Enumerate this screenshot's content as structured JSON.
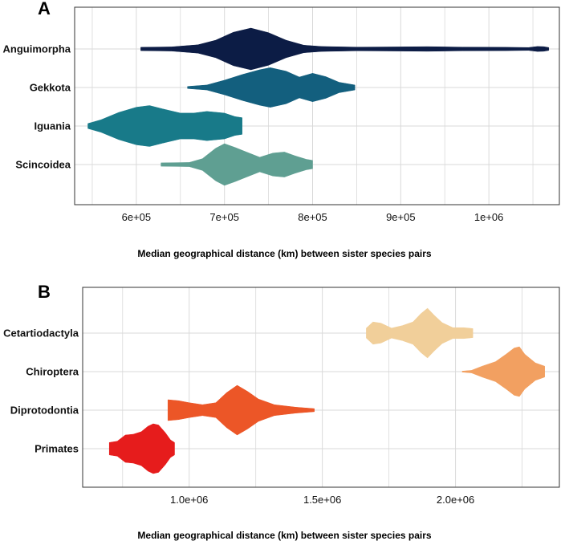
{
  "chart_data": [
    {
      "panel": "A",
      "type": "violin",
      "xlabel": "Median geographical distance (km) between sister species pairs",
      "xlim": [
        530000,
        1080000
      ],
      "xticks": [
        600000,
        700000,
        800000,
        900000,
        1000000
      ],
      "tick_labels": [
        "6e+05",
        "7e+05",
        "8e+05",
        "9e+05",
        "1e+06"
      ],
      "grid": true,
      "categories": [
        "Anguimorpha",
        "Gekkota",
        "Iguania",
        "Scincoidea"
      ],
      "series": [
        {
          "category": "Anguimorpha",
          "color": "#0c1c45",
          "min": 605000,
          "max": 1068000,
          "profile": [
            [
              605000,
              0.08
            ],
            [
              640000,
              0.1
            ],
            [
              670000,
              0.2
            ],
            [
              690000,
              0.42
            ],
            [
              710000,
              0.8
            ],
            [
              730000,
              1.0
            ],
            [
              750000,
              0.78
            ],
            [
              770000,
              0.42
            ],
            [
              790000,
              0.18
            ],
            [
              810000,
              0.12
            ],
            [
              850000,
              0.09
            ],
            [
              900000,
              0.1
            ],
            [
              930000,
              0.11
            ],
            [
              970000,
              0.09
            ],
            [
              1020000,
              0.08
            ],
            [
              1045000,
              0.07
            ],
            [
              1055000,
              0.12
            ],
            [
              1062000,
              0.11
            ],
            [
              1068000,
              0.07
            ]
          ]
        },
        {
          "category": "Gekkota",
          "color": "#135f7e",
          "min": 658000,
          "max": 848000,
          "profile": [
            [
              658000,
              0.05
            ],
            [
              680000,
              0.12
            ],
            [
              700000,
              0.35
            ],
            [
              720000,
              0.62
            ],
            [
              740000,
              0.85
            ],
            [
              752000,
              0.95
            ],
            [
              770000,
              0.78
            ],
            [
              785000,
              0.5
            ],
            [
              800000,
              0.68
            ],
            [
              815000,
              0.52
            ],
            [
              830000,
              0.25
            ],
            [
              848000,
              0.12
            ]
          ]
        },
        {
          "category": "Iguania",
          "color": "#187a89",
          "min": 545000,
          "max": 720000,
          "profile": [
            [
              545000,
              0.12
            ],
            [
              560000,
              0.3
            ],
            [
              580000,
              0.65
            ],
            [
              600000,
              0.9
            ],
            [
              615000,
              0.98
            ],
            [
              630000,
              0.82
            ],
            [
              650000,
              0.62
            ],
            [
              665000,
              0.62
            ],
            [
              680000,
              0.7
            ],
            [
              700000,
              0.62
            ],
            [
              712000,
              0.45
            ],
            [
              720000,
              0.4
            ]
          ]
        },
        {
          "category": "Scincoidea",
          "color": "#5f9f92",
          "min": 628000,
          "max": 800000,
          "profile": [
            [
              628000,
              0.08
            ],
            [
              660000,
              0.1
            ],
            [
              675000,
              0.28
            ],
            [
              690000,
              0.78
            ],
            [
              700000,
              1.0
            ],
            [
              712000,
              0.82
            ],
            [
              725000,
              0.6
            ],
            [
              740000,
              0.35
            ],
            [
              755000,
              0.55
            ],
            [
              768000,
              0.6
            ],
            [
              780000,
              0.42
            ],
            [
              793000,
              0.25
            ],
            [
              800000,
              0.2
            ]
          ]
        }
      ]
    },
    {
      "panel": "B",
      "type": "violin",
      "xlabel": "Median geographical distance (km) between sister species pairs",
      "xlim": [
        600000,
        2390000
      ],
      "xticks": [
        1000000,
        1500000,
        2000000
      ],
      "tick_labels": [
        "1.0e+06",
        "1.5e+06",
        "2.0e+06"
      ],
      "grid": true,
      "categories": [
        "Cetartiodactyla",
        "Chiroptera",
        "Diprotodontia",
        "Primates"
      ],
      "series": [
        {
          "category": "Cetartiodactyla",
          "color": "#f1cf9a",
          "min": 1665000,
          "max": 2065000,
          "profile": [
            [
              1665000,
              0.2
            ],
            [
              1690000,
              0.45
            ],
            [
              1720000,
              0.4
            ],
            [
              1760000,
              0.2
            ],
            [
              1800000,
              0.3
            ],
            [
              1840000,
              0.45
            ],
            [
              1870000,
              0.78
            ],
            [
              1895000,
              1.0
            ],
            [
              1920000,
              0.72
            ],
            [
              1950000,
              0.42
            ],
            [
              1990000,
              0.22
            ],
            [
              2030000,
              0.22
            ],
            [
              2050000,
              0.2
            ],
            [
              2065000,
              0.18
            ]
          ]
        },
        {
          "category": "Chiroptera",
          "color": "#f2a061",
          "min": 2025000,
          "max": 2335000,
          "profile": [
            [
              2025000,
              0.02
            ],
            [
              2060000,
              0.05
            ],
            [
              2100000,
              0.22
            ],
            [
              2150000,
              0.4
            ],
            [
              2190000,
              0.7
            ],
            [
              2220000,
              0.95
            ],
            [
              2240000,
              1.0
            ],
            [
              2260000,
              0.7
            ],
            [
              2300000,
              0.35
            ],
            [
              2335000,
              0.22
            ]
          ]
        },
        {
          "category": "Diprotodontia",
          "color": "#ec5627",
          "min": 920000,
          "max": 1470000,
          "profile": [
            [
              920000,
              0.42
            ],
            [
              960000,
              0.38
            ],
            [
              1000000,
              0.3
            ],
            [
              1050000,
              0.22
            ],
            [
              1100000,
              0.3
            ],
            [
              1140000,
              0.7
            ],
            [
              1180000,
              1.0
            ],
            [
              1220000,
              0.75
            ],
            [
              1260000,
              0.45
            ],
            [
              1320000,
              0.22
            ],
            [
              1400000,
              0.12
            ],
            [
              1470000,
              0.06
            ]
          ]
        },
        {
          "category": "Primates",
          "color": "#e61c1c",
          "min": 700000,
          "max": 945000,
          "profile": [
            [
              700000,
              0.25
            ],
            [
              730000,
              0.3
            ],
            [
              760000,
              0.55
            ],
            [
              790000,
              0.58
            ],
            [
              820000,
              0.68
            ],
            [
              845000,
              0.9
            ],
            [
              865000,
              1.0
            ],
            [
              885000,
              0.95
            ],
            [
              910000,
              0.65
            ],
            [
              930000,
              0.35
            ],
            [
              945000,
              0.25
            ]
          ]
        }
      ]
    }
  ]
}
